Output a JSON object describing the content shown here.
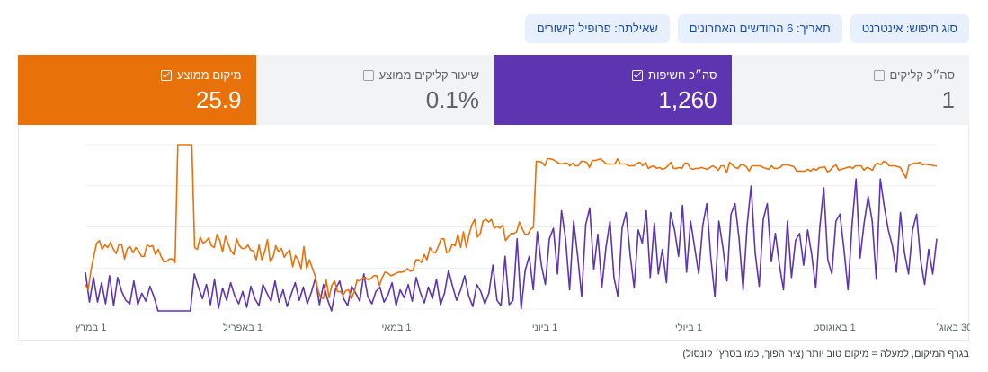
{
  "filters": [
    {
      "name": "filter-search-type",
      "label": "סוג חיפוש: אינטרנט"
    },
    {
      "name": "filter-date",
      "label": "תאריך: 6 החודשים האחרונים"
    },
    {
      "name": "filter-query",
      "label": "שאילתה: פרופיל קישורים"
    }
  ],
  "metrics": [
    {
      "name": "metric-total-clicks",
      "label": "סה״כ קליקים",
      "value": "1",
      "selected": false,
      "color": "#f1f3f4"
    },
    {
      "name": "metric-total-impressions",
      "label": "סה״כ חשיפות",
      "value": "1,260",
      "selected": true,
      "color": "#5e35b1"
    },
    {
      "name": "metric-average-ctr",
      "label": "שיעור קליקים ממוצע",
      "value": "0.1%",
      "selected": false,
      "color": "#f1f3f4"
    },
    {
      "name": "metric-average-position",
      "label": "מיקום ממוצע",
      "value": "25.9",
      "selected": true,
      "color": "#e8710a"
    }
  ],
  "chart_data": {
    "type": "line",
    "x_ticks": [
      "1 במרץ",
      "1 באפריל",
      "1 במאי",
      "1 ביוני",
      "1 ביולי",
      "1 באוגוסט",
      "30 באוג׳"
    ],
    "series": [
      {
        "color": "#5e35b1",
        "values": [
          42,
          8,
          36,
          8,
          30,
          6,
          38,
          4,
          36,
          20,
          10,
          6,
          32,
          5,
          18,
          9,
          26,
          14,
          -2,
          -2,
          -2,
          -2,
          -2,
          -2,
          -2,
          -2,
          -2,
          40,
          25,
          12,
          28,
          5,
          34,
          1,
          24,
          10,
          30,
          15,
          6,
          20,
          2,
          26,
          12,
          4,
          28,
          18,
          9,
          32,
          8,
          22,
          3,
          17,
          30,
          10,
          25,
          6,
          19,
          35,
          5,
          28,
          11,
          -2,
          23,
          32,
          12,
          4,
          26,
          18,
          9,
          40,
          14,
          6,
          20,
          25,
          8,
          16,
          30,
          4,
          22,
          13,
          28,
          9,
          36,
          19,
          7,
          25,
          12,
          34,
          5,
          18,
          44,
          26,
          10,
          22,
          38,
          15,
          3,
          28,
          20,
          6,
          18,
          50,
          10,
          4,
          60,
          5,
          10,
          80,
          0,
          44,
          60,
          22,
          88,
          50,
          28,
          80,
          92,
          40,
          112,
          80,
          22,
          100,
          60,
          14,
          96,
          115,
          45,
          85,
          25,
          70,
          100,
          36,
          14,
          92,
          110,
          62,
          24,
          90,
          75,
          112,
          36,
          98,
          40,
          68,
          30,
          110,
          90,
          60,
          118,
          42,
          100,
          70,
          40,
          95,
          120,
          58,
          14,
          100,
          70,
          32,
          108,
          120,
          80,
          22,
          96,
          140,
          64,
          26,
          102,
          120,
          54,
          86,
          50,
          22,
          100,
          36,
          78,
          86,
          50,
          90,
          62,
          24,
          92,
          138,
          56,
          40,
          100,
          108,
          68,
          22,
          95,
          148,
          58,
          98,
          128,
          100,
          34,
          148,
          116,
          90,
          72,
          42,
          110,
          64,
          40,
          90,
          108,
          56,
          28,
          68,
          40,
          80
        ],
        "name": ""
      },
      {
        "color": "#e8710a",
        "values": [
          28,
          22,
          44,
          60,
          75,
          78,
          68,
          73,
          70,
          76,
          68,
          63,
          74,
          73,
          57,
          69,
          71,
          64,
          70,
          66,
          60,
          60,
          73,
          71,
          72,
          62,
          68,
          60,
          54,
          54,
          57,
          57,
          53,
          187,
          187,
          187,
          187,
          187,
          187,
          70,
          68,
          82,
          75,
          77,
          81,
          72,
          70,
          85,
          78,
          65,
          83,
          74,
          66,
          62,
          80,
          72,
          69,
          69,
          73,
          67,
          66,
          56,
          73,
          56,
          65,
          79,
          54,
          59,
          72,
          65,
          69,
          59,
          64,
          67,
          48,
          61,
          56,
          46,
          71,
          46,
          56,
          47,
          38,
          22,
          13,
          12,
          33,
          13,
          27,
          32,
          20,
          20,
          16,
          21,
          22,
          12,
          20,
          33,
          32,
          35,
          36,
          33,
          35,
          38,
          38,
          27,
          36,
          42,
          41,
          38,
          39,
          41,
          42,
          42,
          43,
          46,
          43,
          44,
          56,
          56,
          53,
          62,
          56,
          70,
          65,
          64,
          71,
          80,
          80,
          64,
          66,
          74,
          72,
          85,
          70,
          88,
          70,
          85,
          96,
          102,
          82,
          86,
          100,
          102,
          99,
          102,
          92,
          94,
          92,
          96,
          78,
          82,
          86,
          86,
          88,
          99,
          91,
          85,
          85,
          91,
          93,
          168,
          168,
          167,
          163,
          171,
          171,
          170,
          168,
          166,
          165,
          166,
          166,
          163,
          166,
          163,
          163,
          168,
          168,
          167,
          161,
          169,
          169,
          170,
          171,
          168,
          165,
          165,
          165,
          165,
          171,
          165,
          165,
          165,
          163,
          163,
          163,
          166,
          167,
          163,
          167,
          160,
          162,
          163,
          160,
          161,
          159,
          160,
          163,
          167,
          160,
          160,
          161,
          160,
          166,
          166,
          160,
          159,
          160,
          160,
          161,
          160,
          159,
          161,
          163,
          161,
          158,
          163,
          163,
          155,
          167,
          164,
          161,
          160,
          164,
          164,
          162,
          157,
          163,
          163,
          163,
          163,
          161,
          160,
          159,
          163,
          160,
          160,
          161,
          164,
          164,
          164,
          163,
          162,
          157,
          157,
          157,
          157,
          159,
          157,
          160,
          158,
          161,
          161,
          162,
          156,
          158,
          162,
          164,
          158,
          159,
          160,
          161,
          162,
          160,
          163,
          163,
          163,
          158,
          161,
          160,
          158,
          164,
          166,
          164,
          168,
          167,
          163,
          163,
          163,
          162,
          161,
          155,
          149,
          163,
          165,
          166,
          166,
          167,
          164,
          165,
          164,
          164,
          163,
          163
        ],
        "name": ""
      }
    ],
    "ylim": [
      0,
      187
    ],
    "grid": true
  },
  "footnote": "בגרף המיקום, למעלה = מיקום טוב יותר (ציר הפוך, כמו בסרץ׳ קונסול)"
}
